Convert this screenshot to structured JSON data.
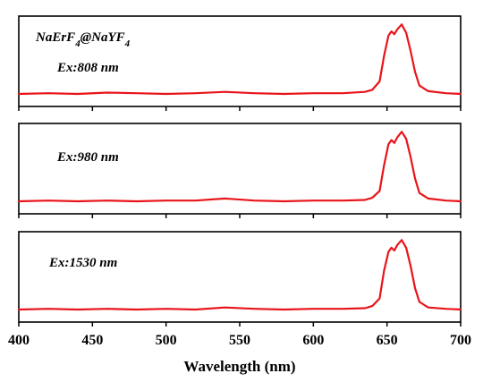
{
  "chart_data": [
    {
      "type": "line",
      "annotation": "NaErF4@NaYF4",
      "annotation_parts": [
        {
          "text": "NaErF",
          "sub": false
        },
        {
          "text": "4",
          "sub": true
        },
        {
          "text": "@NaYF",
          "sub": false
        },
        {
          "text": "4",
          "sub": true
        }
      ],
      "excitation_label": "Ex:808 nm",
      "series": [
        {
          "color": "#e8141a",
          "x": [
            400,
            420,
            440,
            460,
            480,
            500,
            520,
            540,
            560,
            580,
            600,
            620,
            635,
            640,
            645,
            648,
            651,
            653,
            655,
            657,
            660,
            663,
            666,
            669,
            672,
            678,
            690,
            700
          ],
          "y": [
            0.0,
            0.01,
            0.0,
            0.02,
            0.01,
            0.0,
            0.01,
            0.03,
            0.01,
            0.0,
            0.01,
            0.01,
            0.03,
            0.06,
            0.18,
            0.55,
            0.84,
            0.9,
            0.86,
            0.93,
            1.0,
            0.88,
            0.62,
            0.32,
            0.12,
            0.04,
            0.01,
            0.0
          ]
        }
      ],
      "xlim": [
        400,
        700
      ],
      "ylim": [
        -0.18,
        1.12
      ]
    },
    {
      "type": "line",
      "excitation_label": "Ex:980 nm",
      "series": [
        {
          "color": "#e8141a",
          "x": [
            400,
            420,
            440,
            460,
            480,
            500,
            520,
            540,
            560,
            580,
            600,
            620,
            635,
            640,
            645,
            648,
            651,
            653,
            655,
            657,
            660,
            663,
            666,
            669,
            672,
            678,
            690,
            700
          ],
          "y": [
            0.0,
            0.01,
            0.0,
            0.01,
            0.0,
            0.01,
            0.01,
            0.04,
            0.01,
            0.0,
            0.01,
            0.01,
            0.02,
            0.05,
            0.15,
            0.52,
            0.82,
            0.88,
            0.84,
            0.92,
            1.0,
            0.9,
            0.64,
            0.33,
            0.12,
            0.04,
            0.01,
            0.0
          ]
        }
      ],
      "xlim": [
        400,
        700
      ],
      "ylim": [
        -0.18,
        1.12
      ]
    },
    {
      "type": "line",
      "excitation_label": "Ex:1530 nm",
      "series": [
        {
          "color": "#e8141a",
          "x": [
            400,
            420,
            440,
            460,
            480,
            500,
            520,
            540,
            560,
            580,
            600,
            620,
            635,
            640,
            645,
            648,
            651,
            653,
            655,
            657,
            660,
            663,
            666,
            669,
            672,
            678,
            690,
            700
          ],
          "y": [
            0.0,
            0.01,
            0.0,
            0.01,
            0.0,
            0.01,
            0.0,
            0.03,
            0.01,
            0.0,
            0.01,
            0.01,
            0.02,
            0.05,
            0.16,
            0.56,
            0.83,
            0.89,
            0.85,
            0.93,
            1.0,
            0.89,
            0.63,
            0.31,
            0.11,
            0.03,
            0.01,
            0.0
          ]
        }
      ],
      "xlim": [
        400,
        700
      ],
      "ylim": [
        -0.18,
        1.12
      ]
    }
  ],
  "x_axis": {
    "label": "Wavelength (nm)",
    "ticks": [
      400,
      450,
      500,
      550,
      600,
      650,
      700
    ],
    "range": [
      400,
      700
    ]
  }
}
